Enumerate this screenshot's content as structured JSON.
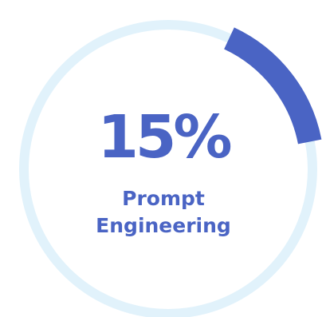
{
  "chart_data": {
    "type": "pie",
    "value_percent": 15,
    "value_label": "15%",
    "label_lines": [
      "Prompt",
      "Engineering"
    ],
    "colors": {
      "progress": "#4a64c4",
      "track": "#e1f2fb",
      "text": "#4a64c4"
    }
  }
}
